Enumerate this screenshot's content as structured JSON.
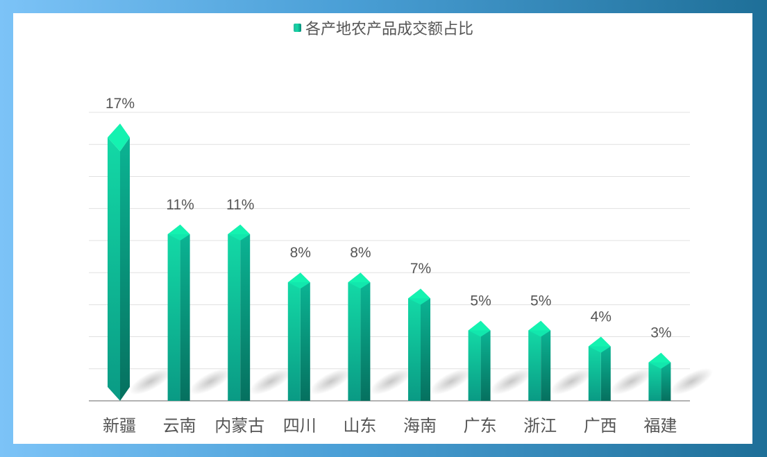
{
  "chart_data": {
    "type": "bar",
    "title": "",
    "legend": {
      "position": "top",
      "entries": [
        "各产地农产品成交额占比"
      ]
    },
    "categories": [
      "新疆",
      "云南",
      "内蒙古",
      "四川",
      "山东",
      "海南",
      "广东",
      "浙江",
      "广西",
      "福建"
    ],
    "series": [
      {
        "name": "各产地农产品成交额占比",
        "values": [
          17,
          11,
          11,
          8,
          8,
          7,
          5,
          5,
          4,
          3
        ],
        "labels": [
          "17%",
          "11%",
          "11%",
          "8%",
          "8%",
          "7%",
          "5%",
          "5%",
          "4%",
          "3%"
        ]
      }
    ],
    "ylim": [
      0,
      18
    ],
    "grid": true,
    "colors": {
      "top": "#14f2b0",
      "front": "#12c49a",
      "side": "#0a8a7a",
      "grid": "#e0e0e0",
      "axis": "#999999",
      "label": "#555555"
    }
  }
}
